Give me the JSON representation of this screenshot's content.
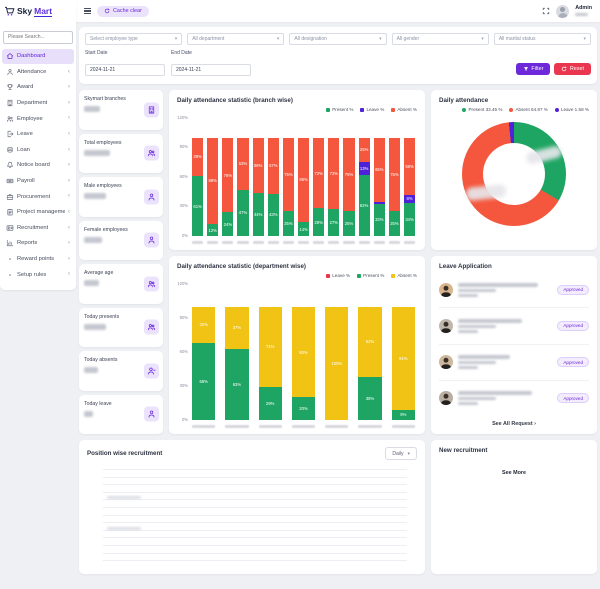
{
  "brand": {
    "name_primary": "Sky",
    "name_accent": "Mart"
  },
  "topbar": {
    "cache_clear_label": "Cache clear",
    "user": {
      "name": "Admin"
    }
  },
  "sidebar": {
    "search_placeholder": "Please Search...",
    "items": [
      {
        "label": "Dashboard",
        "icon": "home",
        "active": true,
        "expandable": false
      },
      {
        "label": "Attendance",
        "icon": "user",
        "active": false,
        "expandable": true
      },
      {
        "label": "Award",
        "icon": "trophy",
        "active": false,
        "expandable": true
      },
      {
        "label": "Department",
        "icon": "building",
        "active": false,
        "expandable": true
      },
      {
        "label": "Employee",
        "icon": "users",
        "active": false,
        "expandable": true
      },
      {
        "label": "Leave",
        "icon": "exit",
        "active": false,
        "expandable": true
      },
      {
        "label": "Loan",
        "icon": "coins",
        "active": false,
        "expandable": true
      },
      {
        "label": "Notice board",
        "icon": "bell",
        "active": false,
        "expandable": true
      },
      {
        "label": "Payroll",
        "icon": "cash",
        "active": false,
        "expandable": true
      },
      {
        "label": "Procurement",
        "icon": "briefcase",
        "active": false,
        "expandable": true
      },
      {
        "label": "Project management",
        "icon": "clipboard",
        "active": false,
        "expandable": true
      },
      {
        "label": "Recruitment",
        "icon": "idcard",
        "active": false,
        "expandable": true
      },
      {
        "label": "Reports",
        "icon": "chart",
        "active": false,
        "expandable": true
      },
      {
        "label": "Reward points",
        "icon": "dot",
        "active": false,
        "expandable": true
      },
      {
        "label": "Setup rules",
        "icon": "dot",
        "active": false,
        "expandable": true
      }
    ]
  },
  "filters": {
    "selects": [
      "Select employee type",
      "All department",
      "All designation",
      "All gender",
      "All marital status"
    ],
    "start_date": {
      "label": "Start Date",
      "value": "2024-11-21"
    },
    "end_date": {
      "label": "End Date",
      "value": "2024-11-21"
    },
    "filter_button": "Filter",
    "reset_button": "Reset"
  },
  "stat_cards": [
    {
      "title": "Skymart branches",
      "icon": "building"
    },
    {
      "title": "Total employees",
      "icon": "users"
    },
    {
      "title": "Male employees",
      "icon": "user"
    },
    {
      "title": "Female employees",
      "icon": "user"
    },
    {
      "title": "Average age",
      "icon": "users"
    },
    {
      "title": "Today presents",
      "icon": "users"
    },
    {
      "title": "Today absents",
      "icon": "user-minus"
    },
    {
      "title": "Today leave",
      "icon": "user"
    }
  ],
  "chart_data": [
    {
      "id": "branch_wise",
      "type": "bar",
      "stacked": true,
      "title": "Daily attendance statistic (branch wise)",
      "ylim": [
        0,
        120
      ],
      "yticks": [
        0,
        30,
        60,
        90,
        120
      ],
      "categories_note": "15 branch names (blurred in source image)",
      "legend": [
        {
          "label": "Present %",
          "color": "#1fa563"
        },
        {
          "label": "Leave %",
          "color": "#4f21d9"
        },
        {
          "label": "Absent %",
          "color": "#f4573d"
        }
      ],
      "series": [
        {
          "name": "Present %",
          "color": "#1fa563",
          "values": [
            61,
            12,
            24,
            47,
            44,
            43,
            25,
            14,
            28,
            27,
            25,
            62,
            33,
            25,
            34
          ]
        },
        {
          "name": "Leave %",
          "color": "#4f21d9",
          "values": [
            0,
            0,
            0,
            0,
            0,
            0,
            0,
            0,
            0,
            0,
            0,
            13,
            2,
            0,
            8
          ]
        },
        {
          "name": "Absent %",
          "color": "#f4573d",
          "values": [
            39,
            88,
            76,
            53,
            56,
            57,
            75,
            86,
            72,
            73,
            75,
            25,
            65,
            75,
            58
          ]
        }
      ]
    },
    {
      "id": "daily_attendance",
      "type": "pie",
      "title": "Daily attendance",
      "slices": [
        {
          "label": "Present 33.45 %",
          "value": 33.45,
          "color": "#1fa563"
        },
        {
          "label": "Absent 64.97 %",
          "value": 64.97,
          "color": "#f4573d"
        },
        {
          "label": "Leave 1.58 %",
          "value": 1.58,
          "color": "#4f21d9"
        }
      ]
    },
    {
      "id": "department_wise",
      "type": "bar",
      "stacked": true,
      "title": "Daily attendance statistic (department wise)",
      "ylim": [
        0,
        120
      ],
      "yticks": [
        0,
        30,
        60,
        90,
        120
      ],
      "categories_note": "7 department names (blurred in source image)",
      "legend": [
        {
          "label": "Leave %",
          "color": "#e8344a"
        },
        {
          "label": "Present %",
          "color": "#1fa563"
        },
        {
          "label": "Absent %",
          "color": "#f0c314"
        }
      ],
      "series": [
        {
          "name": "Present %",
          "color": "#1fa563",
          "values": [
            68,
            63,
            29,
            20,
            0,
            38,
            9
          ]
        },
        {
          "name": "Leave %",
          "color": "#e8344a",
          "values": [
            0,
            0,
            0,
            0,
            0,
            0,
            0
          ]
        },
        {
          "name": "Absent %",
          "color": "#f0c314",
          "values": [
            32,
            37,
            71,
            80,
            100,
            62,
            91
          ]
        }
      ]
    }
  ],
  "leave_application": {
    "title": "Leave Application",
    "rows": [
      {
        "status": "Approved"
      },
      {
        "status": "Approved"
      },
      {
        "status": "Approved"
      },
      {
        "status": "Approved"
      }
    ],
    "see_all_label": "See All Request"
  },
  "position_recruitment": {
    "title": "Position wise recruitment",
    "period": "Daily"
  },
  "new_recruitment": {
    "title": "New recruitment",
    "see_more_label": "See More"
  }
}
